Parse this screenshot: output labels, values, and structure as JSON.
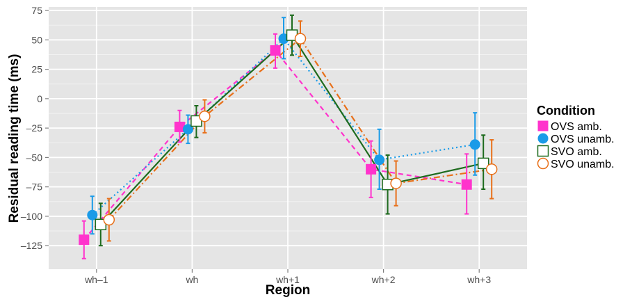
{
  "chart_data": {
    "type": "line",
    "title": "",
    "xlabel": "Region",
    "ylabel": "Residual reading time (ms)",
    "categories": [
      "wh–1",
      "wh",
      "wh+1",
      "wh+2",
      "wh+3"
    ],
    "ylim": [
      -145,
      78
    ],
    "yticks": [
      75,
      50,
      25,
      0,
      -25,
      -50,
      -75,
      -100,
      -125
    ],
    "ytick_labels": [
      "75",
      "50",
      "25",
      "0",
      "–25",
      "–50",
      "–75",
      "–100",
      "–125"
    ],
    "grid": true,
    "legend_title": "Condition",
    "legend_position": "right",
    "series": [
      {
        "name": "OVS amb.",
        "color": "#ff33cc",
        "marker": "square-filled",
        "linestyle": "dashed",
        "values": [
          -120,
          -24,
          41,
          -60,
          -73
        ],
        "err_lo": [
          -136,
          -37,
          26,
          -84,
          -98
        ],
        "err_hi": [
          -104,
          -10,
          55,
          -36,
          -47
        ]
      },
      {
        "name": "OVS unamb.",
        "color": "#1a9be8",
        "marker": "circle-filled",
        "linestyle": "dotted",
        "values": [
          -99,
          -26,
          51,
          -52,
          -39
        ],
        "err_lo": [
          -115,
          -38,
          34,
          -77,
          -65
        ],
        "err_hi": [
          -83,
          -14,
          69,
          -26,
          -12
        ]
      },
      {
        "name": "SVO amb.",
        "color": "#1e6b1e",
        "marker": "square-open",
        "linestyle": "solid",
        "values": [
          -107,
          -19,
          54,
          -73,
          -55
        ],
        "err_lo": [
          -125,
          -33,
          37,
          -98,
          -77
        ],
        "err_hi": [
          -89,
          -6,
          71,
          -48,
          -31
        ]
      },
      {
        "name": "SVO unamb.",
        "color": "#e8701a",
        "marker": "circle-open",
        "linestyle": "dashdot",
        "values": [
          -103,
          -15,
          51,
          -72,
          -60
        ],
        "err_lo": [
          -121,
          -29,
          36,
          -91,
          -85
        ],
        "err_hi": [
          -85,
          -1,
          66,
          -53,
          -35
        ]
      }
    ]
  }
}
